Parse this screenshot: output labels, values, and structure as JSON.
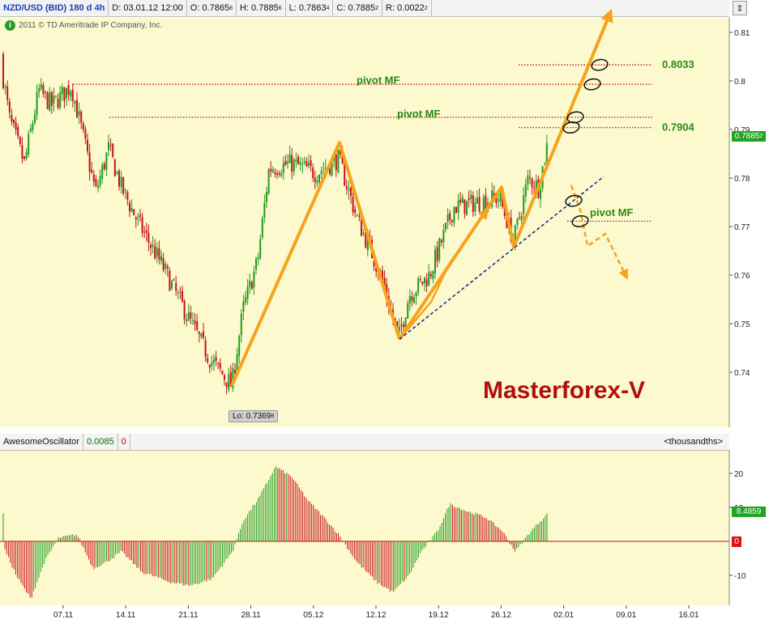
{
  "header": {
    "symbol": "NZD/USD (BID) 180 d 4h",
    "date": "D: 03.01.12 12:00",
    "open": "O: 0.7865",
    "open_sub": "8",
    "high": "H: 0.7885",
    "high_sub": "6",
    "low": "L: 0.7863",
    "low_sub": "4",
    "close": "C: 0.7885",
    "close_sub": "2",
    "range": "R: 0.0022",
    "range_sub": "2"
  },
  "copyright": "2011 © TD Ameritrade IP Company, Inc.",
  "rescale_icon": "rescale-icon",
  "watermark": "Masterforex-V",
  "low_tag": {
    "text": "Lo: 0.7369",
    "sub": "8"
  },
  "last_price_tag": {
    "text": "0.7885",
    "sub": "2"
  },
  "oscillator": {
    "name": "AwesomeOscillator",
    "value": "0.0085",
    "zero": "0",
    "unit": "<thousandths>",
    "tag": "8.4859",
    "zero_tag": "0"
  },
  "colors": {
    "bull": "#1f9a1f",
    "bear": "#c8101c",
    "arrow": "#f7a21b",
    "pivot_line": "#c8101c",
    "trendline": "#1a1a8c",
    "panel_bg": "#fbf9cd"
  },
  "chart_data": [
    {
      "type": "candlestick",
      "title": "NZD/USD (BID) 180 d 4h",
      "y_ticks": [
        0.74,
        0.75,
        0.76,
        0.77,
        0.78,
        0.79,
        0.8,
        0.81
      ],
      "ylim": [
        0.7315,
        0.8145
      ],
      "x_ticks": [
        "07.11",
        "14.11",
        "21.11",
        "28.11",
        "05.12",
        "12.12",
        "19.12",
        "26.12",
        "02.01",
        "09.01",
        "16.01"
      ],
      "path_anchors": [
        {
          "x": 0,
          "y": 0.805
        },
        {
          "x": 12,
          "y": 0.792
        },
        {
          "x": 30,
          "y": 0.783
        },
        {
          "x": 48,
          "y": 0.798
        },
        {
          "x": 64,
          "y": 0.795
        },
        {
          "x": 88,
          "y": 0.799
        },
        {
          "x": 102,
          "y": 0.789
        },
        {
          "x": 118,
          "y": 0.777
        },
        {
          "x": 134,
          "y": 0.786
        },
        {
          "x": 150,
          "y": 0.778
        },
        {
          "x": 170,
          "y": 0.771
        },
        {
          "x": 200,
          "y": 0.762
        },
        {
          "x": 230,
          "y": 0.752
        },
        {
          "x": 258,
          "y": 0.743
        },
        {
          "x": 286,
          "y": 0.7372
        },
        {
          "x": 300,
          "y": 0.753
        },
        {
          "x": 318,
          "y": 0.763
        },
        {
          "x": 332,
          "y": 0.782
        },
        {
          "x": 360,
          "y": 0.783
        },
        {
          "x": 390,
          "y": 0.781
        },
        {
          "x": 418,
          "y": 0.784
        },
        {
          "x": 440,
          "y": 0.772
        },
        {
          "x": 470,
          "y": 0.76
        },
        {
          "x": 492,
          "y": 0.747
        },
        {
          "x": 505,
          "y": 0.756
        },
        {
          "x": 530,
          "y": 0.76
        },
        {
          "x": 560,
          "y": 0.774
        },
        {
          "x": 590,
          "y": 0.775
        },
        {
          "x": 616,
          "y": 0.776
        },
        {
          "x": 634,
          "y": 0.767
        },
        {
          "x": 652,
          "y": 0.78
        },
        {
          "x": 665,
          "y": 0.778
        },
        {
          "x": 677,
          "y": 0.7885
        }
      ],
      "annotations": [
        {
          "type": "hline",
          "y": 0.7993,
          "x_from": 90,
          "x_to": 805,
          "label": "pivot MF",
          "label_x": 440,
          "label_y": 0.8001
        },
        {
          "type": "hline",
          "y": 0.7925,
          "x_from": 135,
          "x_to": 805,
          "label": "pivot MF",
          "label_x": 490,
          "label_y": 0.7932
        },
        {
          "type": "hline",
          "y": 0.8033,
          "x_from": 640,
          "x_to": 805,
          "label": "0.8033",
          "label_x": 817,
          "label_y": 0.8033
        },
        {
          "type": "hline",
          "y": 0.7904,
          "x_from": 640,
          "x_to": 805,
          "label": "0.7904",
          "label_x": 817,
          "label_y": 0.7904
        },
        {
          "type": "hline",
          "y": 0.7711,
          "x_from": 700,
          "x_to": 805,
          "label": "pivot MF",
          "label_x": 728,
          "label_y": 0.7728
        }
      ],
      "waves": [
        [
          {
            "x": 286,
            "y": 0.7372
          },
          {
            "x": 419,
            "y": 0.7873
          },
          {
            "x": 493,
            "y": 0.7468
          }
        ],
        [
          {
            "x": 493,
            "y": 0.7468
          },
          {
            "x": 619,
            "y": 0.7781
          },
          {
            "x": 634,
            "y": 0.7658
          },
          {
            "x": 752,
            "y": 0.8136
          }
        ]
      ],
      "thin_arrow": [
        {
          "x": 493,
          "y": 0.7468
        },
        {
          "x": 532,
          "y": 0.7545
        },
        {
          "x": 555,
          "y": 0.7625
        },
        {
          "x": 599,
          "y": 0.7728
        }
      ],
      "trendline": [
        {
          "x": 493,
          "y": 0.7468
        },
        {
          "x": 745,
          "y": 0.7803
        }
      ],
      "dashed_arrow": [
        {
          "x": 705,
          "y": 0.7785
        },
        {
          "x": 716,
          "y": 0.7735
        },
        {
          "x": 725,
          "y": 0.766
        },
        {
          "x": 747,
          "y": 0.7685
        },
        {
          "x": 772,
          "y": 0.76
        }
      ],
      "ellipses": [
        {
          "x": 740,
          "y": 0.8033
        },
        {
          "x": 731,
          "y": 0.7993
        },
        {
          "x": 710,
          "y": 0.7925
        },
        {
          "x": 705,
          "y": 0.7904
        },
        {
          "x": 708,
          "y": 0.7753
        },
        {
          "x": 716,
          "y": 0.7711
        }
      ]
    },
    {
      "type": "bar",
      "title": "AwesomeOscillator",
      "ylabel": "<thousandths>",
      "y_ticks": [
        -10,
        0,
        10,
        20
      ],
      "ylim": [
        -18,
        25
      ],
      "osc_anchors": [
        {
          "x": 5,
          "y": -2
        },
        {
          "x": 20,
          "y": -10
        },
        {
          "x": 38,
          "y": -17
        },
        {
          "x": 55,
          "y": -6
        },
        {
          "x": 72,
          "y": 1
        },
        {
          "x": 95,
          "y": 2
        },
        {
          "x": 115,
          "y": -8
        },
        {
          "x": 132,
          "y": -6
        },
        {
          "x": 150,
          "y": -3
        },
        {
          "x": 175,
          "y": -9
        },
        {
          "x": 210,
          "y": -12
        },
        {
          "x": 235,
          "y": -13
        },
        {
          "x": 262,
          "y": -11
        },
        {
          "x": 287,
          "y": -3
        },
        {
          "x": 300,
          "y": 6
        },
        {
          "x": 320,
          "y": 13
        },
        {
          "x": 340,
          "y": 22
        },
        {
          "x": 360,
          "y": 19
        },
        {
          "x": 380,
          "y": 12
        },
        {
          "x": 400,
          "y": 7
        },
        {
          "x": 418,
          "y": 2
        },
        {
          "x": 440,
          "y": -6
        },
        {
          "x": 465,
          "y": -12
        },
        {
          "x": 485,
          "y": -15
        },
        {
          "x": 505,
          "y": -10
        },
        {
          "x": 520,
          "y": -3
        },
        {
          "x": 540,
          "y": 3
        },
        {
          "x": 555,
          "y": 11
        },
        {
          "x": 575,
          "y": 9
        },
        {
          "x": 600,
          "y": 7
        },
        {
          "x": 620,
          "y": 3
        },
        {
          "x": 636,
          "y": -3
        },
        {
          "x": 655,
          "y": 3
        },
        {
          "x": 677,
          "y": 8.5
        }
      ]
    }
  ],
  "icons": {
    "copyright_logo": "ameritrade-logo-icon",
    "rescale": "rescale-icon"
  }
}
